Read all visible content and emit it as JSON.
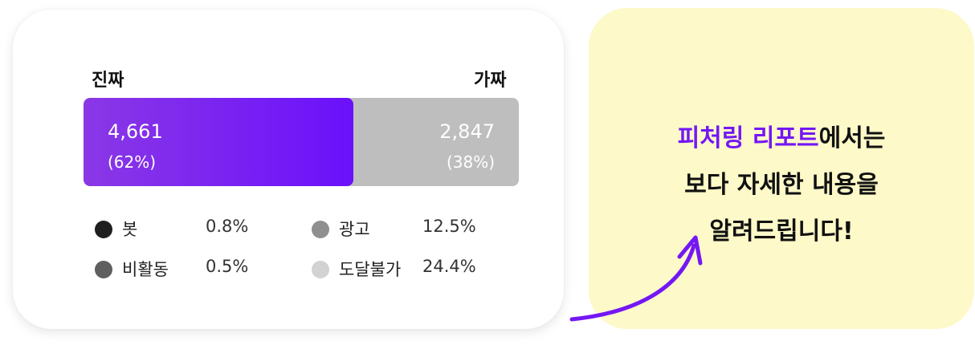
{
  "card": {
    "real_label": "진짜",
    "fake_label": "가짜",
    "real": {
      "count": "4,661",
      "percent": "(62%)",
      "share": 0.62
    },
    "fake": {
      "count": "2,847",
      "percent": "(38%)",
      "share": 0.38
    },
    "legend": [
      {
        "label": "봇",
        "value": "0.8%",
        "color": "#1f1f1f"
      },
      {
        "label": "광고",
        "value": "12.5%",
        "color": "#8f8f8f"
      },
      {
        "label": "비활동",
        "value": "0.5%",
        "color": "#5f5f5f"
      },
      {
        "label": "도달불가",
        "value": "24.4%",
        "color": "#d2d2d2"
      }
    ]
  },
  "promo": {
    "highlight": "피처링 리포트",
    "line1_rest": "에서는",
    "line2": "보다 자세한 내용을",
    "line3": "알려드립니다!"
  },
  "colors": {
    "accent": "#7417f5",
    "bar_real_start": "#8a38e6",
    "bar_real_end": "#6b10fb",
    "bar_fake": "#bebebe",
    "promo_bg": "#fdf9c8"
  }
}
